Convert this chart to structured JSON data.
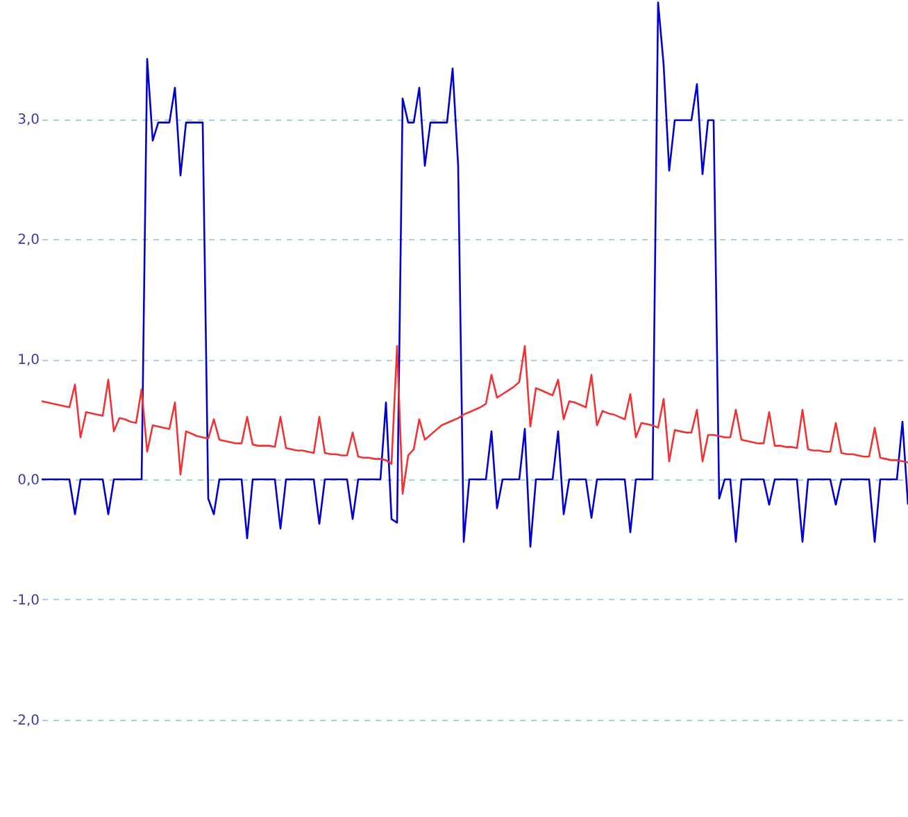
{
  "chart_data": {
    "type": "line",
    "ylim": [
      -2.81,
      3.99
    ],
    "yticks": [
      {
        "value": -2,
        "label": "-2,0"
      },
      {
        "value": -1,
        "label": "-1,0"
      },
      {
        "value": 0,
        "label": "0,0"
      },
      {
        "value": 1,
        "label": "1,0"
      },
      {
        "value": 2,
        "label": "2,0"
      },
      {
        "value": 3,
        "label": "3,0"
      }
    ],
    "grid": "y",
    "tick_labels": "y",
    "categories": [
      null,
      null,
      null,
      null,
      null,
      null,
      null,
      null,
      null,
      null,
      null,
      null,
      null,
      null,
      null,
      null,
      null,
      null,
      null,
      null,
      null,
      null,
      null,
      null,
      null,
      null,
      null,
      null,
      null,
      null,
      null,
      null,
      null,
      null,
      null,
      null,
      null,
      null,
      null,
      null,
      null,
      null,
      null,
      null,
      null,
      null,
      null,
      null,
      null,
      null,
      null,
      null,
      null,
      null,
      null,
      null,
      null,
      null,
      null,
      null,
      null,
      null,
      null,
      null,
      null,
      null,
      null,
      null,
      null,
      null,
      null,
      null,
      null,
      null,
      null,
      null,
      null,
      null,
      null,
      null,
      null,
      null,
      null,
      null,
      null,
      null,
      null,
      null,
      null,
      null,
      null,
      null,
      null,
      null,
      null,
      null,
      null,
      null,
      null,
      null,
      null,
      null,
      null,
      null,
      null,
      null,
      null,
      null,
      null,
      null,
      null,
      null,
      null,
      null,
      null,
      null,
      null,
      null,
      null,
      null,
      null,
      null,
      null,
      null,
      null,
      null,
      null,
      null,
      null,
      null,
      null,
      null,
      null,
      null,
      null,
      null,
      null,
      null,
      null,
      null,
      null,
      null,
      null,
      null,
      null,
      null,
      null,
      null,
      null,
      null,
      null,
      null,
      null,
      null,
      null,
      null,
      null
    ],
    "series": [
      {
        "color": "#0000cc",
        "values": [
          0,
          0,
          0,
          0,
          0,
          0,
          -0.29,
          0,
          0,
          0,
          0,
          0,
          -0.29,
          0,
          0,
          0,
          0,
          0,
          0,
          3.5,
          2.82,
          2.97,
          2.97,
          2.97,
          3.26,
          2.53,
          2.97,
          2.97,
          2.97,
          2.97,
          -0.16,
          -0.29,
          0,
          0,
          0,
          0,
          0,
          -0.49,
          0,
          0,
          0,
          0,
          0,
          -0.41,
          0,
          0,
          0,
          0,
          0,
          0,
          -0.37,
          0,
          0,
          0,
          0,
          0,
          -0.33,
          0,
          0,
          0,
          0,
          0,
          0.64,
          -0.33,
          -0.36,
          3.17,
          2.97,
          2.97,
          3.26,
          2.61,
          2.97,
          2.97,
          2.97,
          2.97,
          3.42,
          2.61,
          -0.52,
          0,
          0,
          0,
          0,
          0.4,
          -0.24,
          0,
          0,
          0,
          0,
          0.42,
          -0.56,
          0,
          0,
          0,
          0,
          0.4,
          -0.29,
          0,
          0,
          0,
          0,
          -0.32,
          0,
          0,
          0,
          0,
          0,
          0,
          -0.44,
          0,
          0,
          0,
          0,
          3.97,
          3.45,
          2.57,
          2.99,
          2.99,
          2.99,
          2.99,
          3.29,
          2.54,
          2.99,
          2.99,
          -0.16,
          0,
          0,
          -0.52,
          0,
          0,
          0,
          0,
          0,
          -0.21,
          0,
          0,
          0,
          0,
          0,
          -0.52,
          0,
          0,
          0,
          0,
          0,
          -0.21,
          0,
          0,
          0,
          0,
          0,
          0,
          -0.52,
          0,
          0,
          0,
          0,
          0.48,
          -0.21
        ]
      },
      {
        "color": "#ee3333",
        "values": [
          0.65,
          0.64,
          0.63,
          0.62,
          0.61,
          0.6,
          0.79,
          0.35,
          0.56,
          0.55,
          0.54,
          0.53,
          0.83,
          0.4,
          0.51,
          0.5,
          0.48,
          0.47,
          0.75,
          0.23,
          0.45,
          0.44,
          0.43,
          0.42,
          0.64,
          0.04,
          0.4,
          0.38,
          0.36,
          0.35,
          0.34,
          0.5,
          0.33,
          0.32,
          0.31,
          0.3,
          0.3,
          0.52,
          0.29,
          0.28,
          0.28,
          0.28,
          0.27,
          0.52,
          0.26,
          0.25,
          0.24,
          0.24,
          0.23,
          0.22,
          0.52,
          0.22,
          0.21,
          0.21,
          0.2,
          0.2,
          0.39,
          0.19,
          0.18,
          0.18,
          0.17,
          0.17,
          0.16,
          0.13,
          1.11,
          -0.12,
          0.2,
          0.25,
          0.5,
          0.33,
          0.37,
          0.41,
          0.45,
          0.47,
          0.49,
          0.51,
          0.54,
          0.56,
          0.58,
          0.6,
          0.63,
          0.87,
          0.68,
          0.71,
          0.74,
          0.77,
          0.81,
          1.11,
          0.44,
          0.76,
          0.74,
          0.72,
          0.7,
          0.83,
          0.5,
          0.65,
          0.64,
          0.62,
          0.6,
          0.87,
          0.45,
          0.57,
          0.55,
          0.54,
          0.52,
          0.5,
          0.71,
          0.35,
          0.47,
          0.46,
          0.45,
          0.43,
          0.67,
          0.15,
          0.41,
          0.4,
          0.39,
          0.39,
          0.58,
          0.15,
          0.37,
          0.37,
          0.36,
          0.35,
          0.35,
          0.58,
          0.33,
          0.32,
          0.31,
          0.3,
          0.3,
          0.56,
          0.28,
          0.28,
          0.27,
          0.27,
          0.26,
          0.58,
          0.25,
          0.24,
          0.24,
          0.23,
          0.23,
          0.47,
          0.22,
          0.21,
          0.21,
          0.2,
          0.19,
          0.19,
          0.43,
          0.18,
          0.17,
          0.16,
          0.16,
          0.15,
          0.14
        ]
      }
    ]
  }
}
